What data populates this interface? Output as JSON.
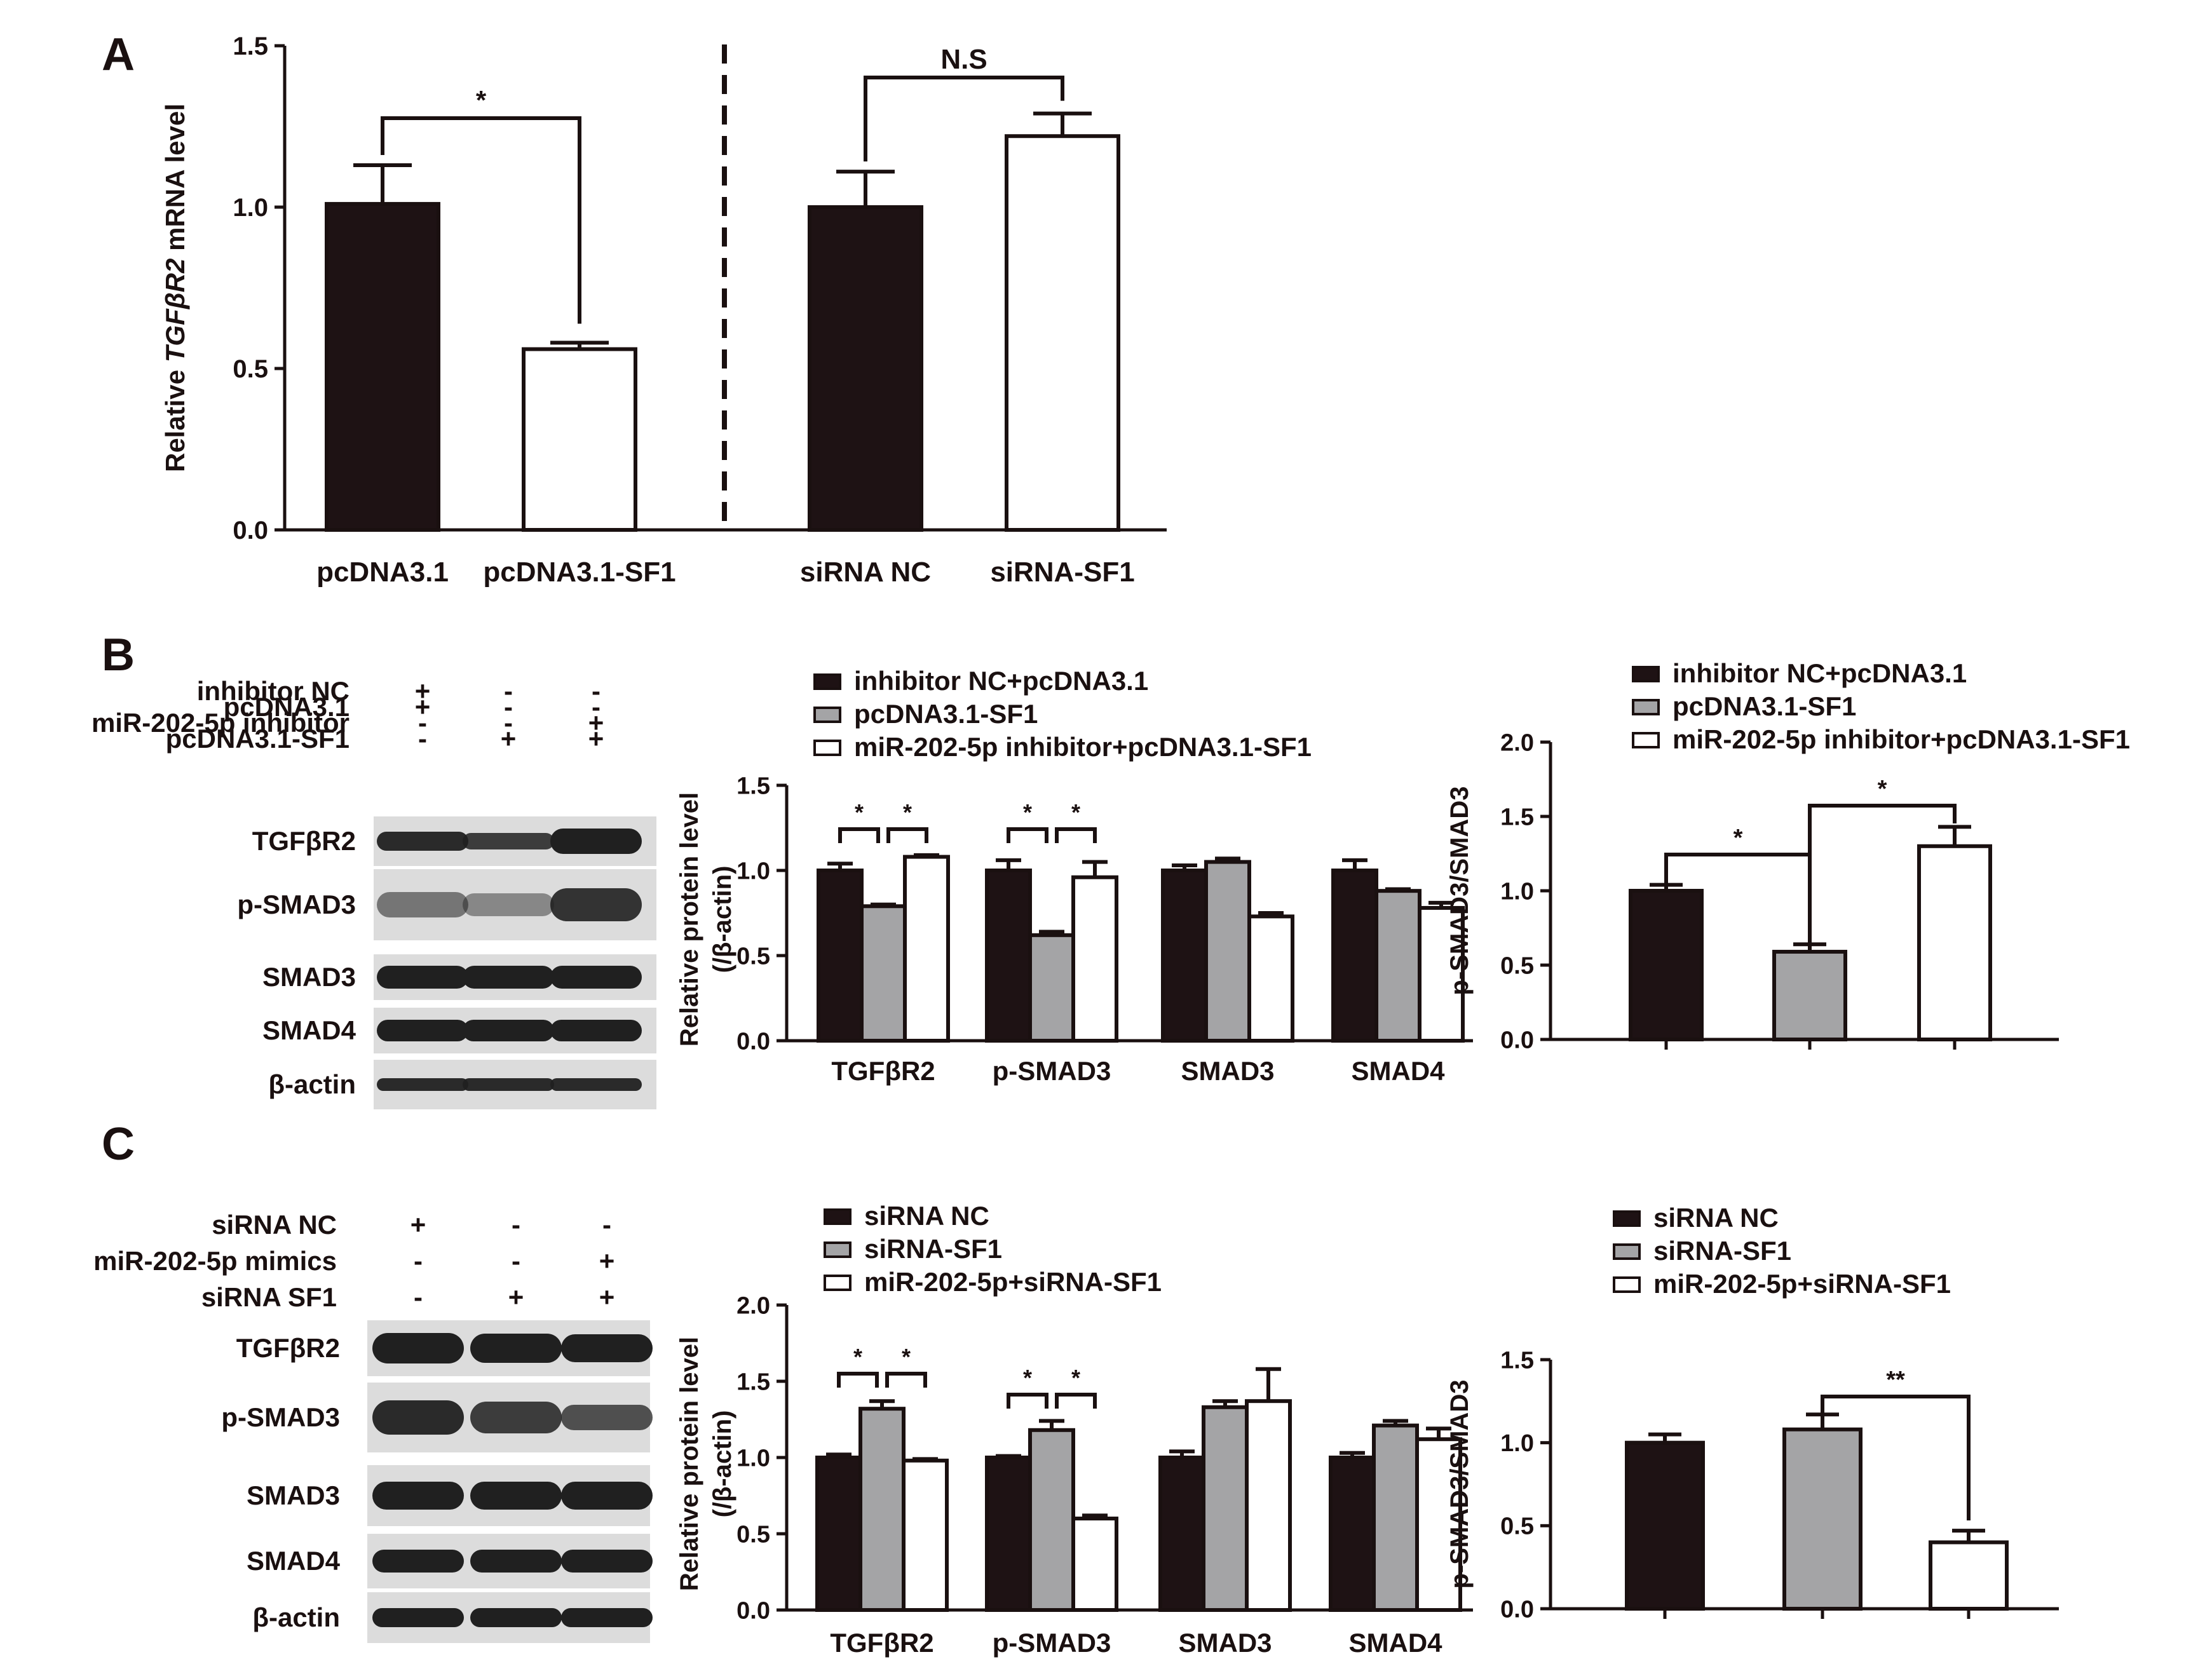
{
  "panel_letters": {
    "a": "A",
    "b": "B",
    "c": "C"
  },
  "colors": {
    "dark": "#1e1214",
    "gray": "#a4a4a6",
    "white": "#ffffff",
    "band": "#202020",
    "blot_bg": "#dcdcdc"
  },
  "blots": {
    "b": {
      "conditions": [
        {
          "label": "inhibitor NC",
          "signs": [
            "+",
            "-",
            "-"
          ]
        },
        {
          "label": "pcDNA3.1",
          "signs": [
            "+",
            "-",
            "-"
          ]
        },
        {
          "label": "miR-202-5p inhibitor",
          "signs": [
            "-",
            "-",
            "+"
          ]
        },
        {
          "label": "pcDNA3.1-SF1",
          "signs": [
            "-",
            "+",
            "+"
          ]
        }
      ],
      "bands": [
        "TGFβR2",
        "p-SMAD3",
        "SMAD3",
        "SMAD4",
        "β-actin"
      ]
    },
    "c": {
      "conditions": [
        {
          "label": "siRNA NC",
          "signs": [
            "+",
            "-",
            "-"
          ]
        },
        {
          "label": "miR-202-5p mimics",
          "signs": [
            "-",
            "-",
            "+"
          ]
        },
        {
          "label": "siRNA SF1",
          "signs": [
            "-",
            "+",
            "+"
          ]
        }
      ],
      "bands": [
        "TGFβR2",
        "p-SMAD3",
        "SMAD3",
        "SMAD4",
        "β-actin"
      ]
    }
  },
  "chart_data": [
    {
      "id": "A",
      "type": "bar",
      "ylabel_pre": "Relative ",
      "ylabel_italic": "TGFβR2",
      "ylabel_post": " mRNA level",
      "ylim": [
        0,
        1.5
      ],
      "yticks": [
        "0.0",
        "0.5",
        "1.0",
        "1.5"
      ],
      "categories": [
        "pcDNA3.1",
        "pcDNA3.1-SF1",
        "siRNA NC",
        "siRNA-SF1"
      ],
      "values": [
        1.01,
        0.56,
        1.0,
        1.22
      ],
      "errors": [
        0.12,
        0.02,
        0.11,
        0.07
      ],
      "fills": [
        "dark",
        "white",
        "dark",
        "white"
      ],
      "annotations": [
        {
          "text": "*",
          "from": 0,
          "to": 1
        },
        {
          "text": "N.S",
          "from": 2,
          "to": 3
        }
      ]
    },
    {
      "id": "B-protein",
      "type": "bar",
      "ylabel": "Relative protein level",
      "ylabel2": "(/β-actin)",
      "ylim": [
        0,
        1.5
      ],
      "yticks": [
        "0.0",
        "0.5",
        "1.0",
        "1.5"
      ],
      "categories": [
        "TGFβR2",
        "p-SMAD3",
        "SMAD3",
        "SMAD4"
      ],
      "series": [
        {
          "name": "inhibitor NC+pcDNA3.1",
          "fill": "dark",
          "values": [
            1.0,
            1.0,
            1.0,
            1.0
          ],
          "errors": [
            0.04,
            0.06,
            0.03,
            0.06
          ]
        },
        {
          "name": "pcDNA3.1-SF1",
          "fill": "gray",
          "values": [
            0.79,
            0.62,
            1.05,
            0.88
          ],
          "errors": [
            0.01,
            0.02,
            0.02,
            0.01
          ]
        },
        {
          "name": "miR-202-5p inhibitor+pcDNA3.1-SF1",
          "fill": "white",
          "values": [
            1.08,
            0.96,
            0.73,
            0.78
          ],
          "errors": [
            0.01,
            0.09,
            0.02,
            0.03
          ]
        }
      ],
      "annotations": [
        {
          "text": "*",
          "cat": 0,
          "from": 0,
          "to": 1
        },
        {
          "text": "*",
          "cat": 0,
          "from": 1,
          "to": 2
        },
        {
          "text": "*",
          "cat": 1,
          "from": 0,
          "to": 1
        },
        {
          "text": "*",
          "cat": 1,
          "from": 1,
          "to": 2
        }
      ]
    },
    {
      "id": "B-ratio",
      "type": "bar",
      "ylabel": "p-SMAD3/SMAD3",
      "ylim": [
        0,
        2.0
      ],
      "yticks": [
        "0.0",
        "0.5",
        "1.0",
        "1.5",
        "2.0"
      ],
      "categories": [
        "inhibitor NC+pcDNA3.1",
        "pcDNA3.1-SF1",
        "miR-202-5p inhibitor+pcDNA3.1-SF1"
      ],
      "values": [
        1.0,
        0.59,
        1.3
      ],
      "errors": [
        0.04,
        0.05,
        0.13
      ],
      "fills": [
        "dark",
        "gray",
        "white"
      ],
      "annotations": [
        {
          "text": "*",
          "from": 0,
          "to": 1
        },
        {
          "text": "*",
          "from": 1,
          "to": 2
        }
      ]
    },
    {
      "id": "C-protein",
      "type": "bar",
      "ylabel": "Relative protein level",
      "ylabel2": "(/β-actin)",
      "ylim": [
        0,
        2.0
      ],
      "yticks": [
        "0.0",
        "0.5",
        "1.0",
        "1.5",
        "2.0"
      ],
      "categories": [
        "TGFβR2",
        "p-SMAD3",
        "SMAD3",
        "SMAD4"
      ],
      "series": [
        {
          "name": "siRNA NC",
          "fill": "dark",
          "values": [
            1.0,
            1.0,
            1.0,
            1.0
          ],
          "errors": [
            0.02,
            0.01,
            0.04,
            0.03
          ]
        },
        {
          "name": "siRNA-SF1",
          "fill": "gray",
          "values": [
            1.32,
            1.18,
            1.33,
            1.21
          ],
          "errors": [
            0.05,
            0.06,
            0.04,
            0.03
          ]
        },
        {
          "name": "miR-202-5p+siRNA-SF1",
          "fill": "white",
          "values": [
            0.98,
            0.6,
            1.37,
            1.12
          ],
          "errors": [
            0.01,
            0.02,
            0.21,
            0.07
          ]
        }
      ],
      "annotations": [
        {
          "text": "*",
          "cat": 0,
          "from": 0,
          "to": 1
        },
        {
          "text": "*",
          "cat": 0,
          "from": 1,
          "to": 2
        },
        {
          "text": "*",
          "cat": 1,
          "from": 0,
          "to": 1
        },
        {
          "text": "*",
          "cat": 1,
          "from": 1,
          "to": 2
        }
      ]
    },
    {
      "id": "C-ratio",
      "type": "bar",
      "ylabel": "p-SMAD3/SMAD3",
      "ylim": [
        0,
        1.5
      ],
      "yticks": [
        "0.0",
        "0.5",
        "1.0",
        "1.5"
      ],
      "categories": [
        "siRNA NC",
        "siRNA-SF1",
        "miR-202-5p+siRNA-SF1"
      ],
      "values": [
        1.0,
        1.08,
        0.4
      ],
      "errors": [
        0.05,
        0.09,
        0.07
      ],
      "fills": [
        "dark",
        "gray",
        "white"
      ],
      "annotations": [
        {
          "text": "**",
          "from": 1,
          "to": 2
        }
      ]
    }
  ]
}
